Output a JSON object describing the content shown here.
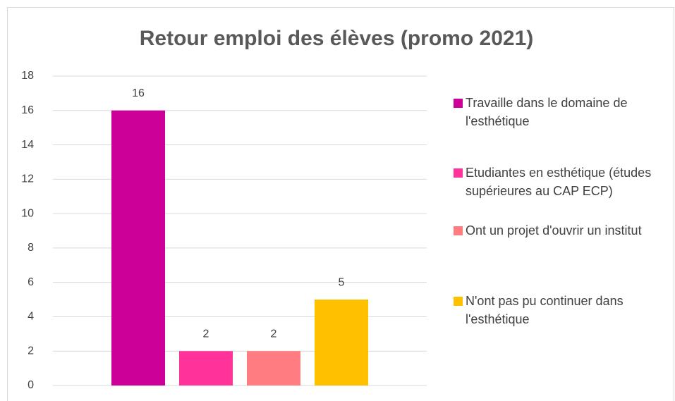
{
  "chart_data": {
    "type": "bar",
    "title": "Retour emploi des élèves (promo 2021)",
    "categories": [
      null
    ],
    "series": [
      {
        "name": "Travaille dans le domaine de l'esthétique",
        "color": "#cc0099",
        "values": [
          16
        ]
      },
      {
        "name": "Etudiantes en esthétique (études supérieures au CAP ECP)",
        "color": "#ff3399",
        "values": [
          2
        ]
      },
      {
        "name": "Ont un projet d'ouvrir un institut",
        "color": "#ff7c80",
        "values": [
          2
        ]
      },
      {
        "name": "N'ont pas pu continuer dans l'esthétique",
        "color": "#ffc000",
        "values": [
          5
        ]
      }
    ],
    "ylim": [
      0,
      18
    ],
    "yticks": [
      0,
      2,
      4,
      6,
      8,
      10,
      12,
      14,
      16,
      18
    ],
    "grid": true,
    "legend": "right"
  }
}
